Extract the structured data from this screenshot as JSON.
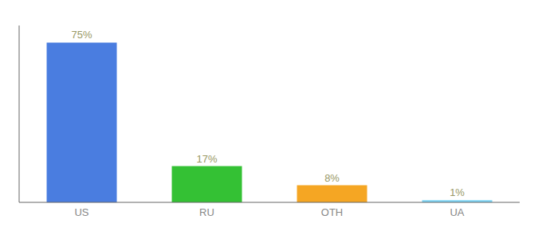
{
  "chart_data": {
    "type": "bar",
    "categories": [
      "US",
      "RU",
      "OTH",
      "UA"
    ],
    "values": [
      75,
      17,
      8,
      1
    ],
    "value_labels": [
      "75%",
      "17%",
      "8%",
      "1%"
    ],
    "colors": [
      "#4a7de0",
      "#34c134",
      "#f5a623",
      "#7dd4f5"
    ],
    "ylim": [
      0,
      83
    ],
    "data_labels": true,
    "tick_labels": "x",
    "grid": false
  }
}
